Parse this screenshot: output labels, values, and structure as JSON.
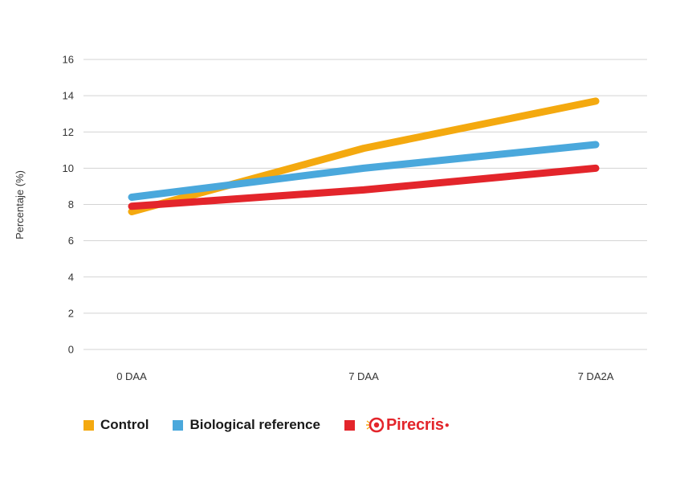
{
  "chart_data": {
    "type": "line",
    "categories": [
      "0 DAA",
      "7 DAA",
      "7 DA2A"
    ],
    "ylabel": "Percentaje (%)",
    "ylim": [
      0,
      16
    ],
    "yticks": [
      0,
      2,
      4,
      6,
      8,
      10,
      12,
      14,
      16
    ],
    "grid": true,
    "legend_position": "bottom",
    "series": [
      {
        "name": "Control",
        "color": "#f4a90f",
        "values": [
          7.6,
          11.1,
          13.7
        ]
      },
      {
        "name": "Biological reference",
        "color": "#4aa8dc",
        "values": [
          8.4,
          10.0,
          11.3
        ]
      },
      {
        "name": "Pirecris",
        "color": "#e3252b",
        "values": [
          7.9,
          8.8,
          10.0
        ]
      }
    ]
  },
  "legend": {
    "items": [
      {
        "label": "Control",
        "color": "#f4a90f"
      },
      {
        "label": "Biological reference",
        "color": "#4aa8dc"
      },
      {
        "label": "Pirecris",
        "color": "#e3252b",
        "logo": true
      }
    ]
  }
}
